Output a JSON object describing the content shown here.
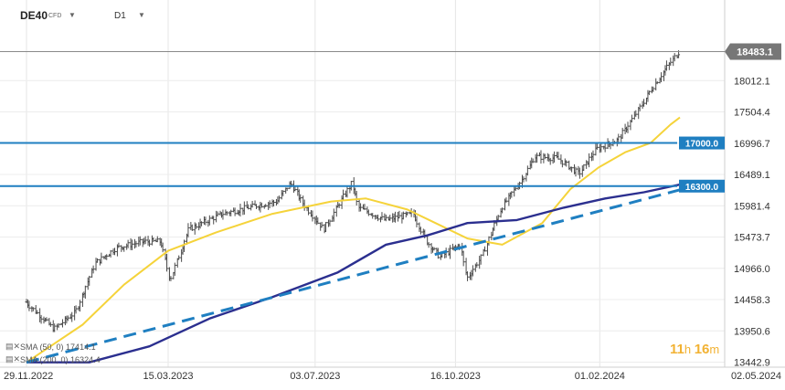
{
  "header": {
    "symbol": "DE40",
    "instrument_type": "CFD",
    "timeframe": "D1",
    "dropdown_icon": "triangle-down-icon"
  },
  "indicators": [
    {
      "label": "SMA (50, 0)",
      "value": "17414.1",
      "color": "#f5d33a"
    },
    {
      "label": "SMA (200, 0)",
      "value": "16324.4",
      "color": "#2b2f8f"
    }
  ],
  "timer": {
    "hours": "11",
    "h_unit": "h",
    "minutes": "16",
    "m_unit": "m"
  },
  "chart_data": {
    "type": "candlestick",
    "title": "",
    "x_ticks": [
      "29.11.2022",
      "15.03.2023",
      "03.07.2023",
      "16.10.2023",
      "01.02.2024",
      "02.05.2024"
    ],
    "y_ticks": [
      18012.1,
      17504.4,
      16996.7,
      16489.1,
      15981.4,
      15473.7,
      14966.0,
      14458.3,
      13950.6,
      13442.9
    ],
    "ylim": [
      13442.9,
      18600
    ],
    "current_price": {
      "value": 18483.1,
      "label": "18483.1"
    },
    "horizontal_levels": [
      {
        "value": 17000.0,
        "label": "17000.0",
        "color": "#1f7fc1"
      },
      {
        "value": 16300.0,
        "label": "16300.0",
        "color": "#1f7fc1"
      }
    ],
    "trendline": {
      "style": "dashed",
      "color": "#1f7fc1",
      "points": [
        [
          "2022-11-29",
          13440
        ],
        [
          "2024-04-01",
          16240
        ]
      ]
    },
    "close_path": [
      [
        "2022-11-29",
        14420
      ],
      [
        "2022-12-20",
        13980
      ],
      [
        "2023-01-05",
        14250
      ],
      [
        "2023-01-20",
        15050
      ],
      [
        "2023-02-05",
        15300
      ],
      [
        "2023-02-25",
        15400
      ],
      [
        "2023-03-10",
        15400
      ],
      [
        "2023-03-17",
        14780
      ],
      [
        "2023-03-31",
        15600
      ],
      [
        "2023-04-25",
        15850
      ],
      [
        "2023-05-20",
        15980
      ],
      [
        "2023-06-05",
        16050
      ],
      [
        "2023-06-15",
        16350
      ],
      [
        "2023-06-25",
        16000
      ],
      [
        "2023-07-10",
        15600
      ],
      [
        "2023-07-31",
        16350
      ],
      [
        "2023-08-05",
        15950
      ],
      [
        "2023-08-25",
        15750
      ],
      [
        "2023-09-15",
        15850
      ],
      [
        "2023-09-25",
        15400
      ],
      [
        "2023-10-05",
        15150
      ],
      [
        "2023-10-20",
        15350
      ],
      [
        "2023-10-25",
        14800
      ],
      [
        "2023-11-05",
        15150
      ],
      [
        "2023-11-20",
        15950
      ],
      [
        "2023-12-05",
        16400
      ],
      [
        "2023-12-15",
        16780
      ],
      [
        "2024-01-01",
        16750
      ],
      [
        "2024-01-17",
        16500
      ],
      [
        "2024-01-30",
        16900
      ],
      [
        "2024-02-15",
        17050
      ],
      [
        "2024-02-28",
        17450
      ],
      [
        "2024-03-12",
        17900
      ],
      [
        "2024-03-20",
        18150
      ],
      [
        "2024-04-01",
        18483
      ]
    ],
    "series": [
      {
        "name": "SMA (50, 0)",
        "color": "#f5d33a",
        "points": [
          [
            "2022-11-29",
            13440
          ],
          [
            "2023-01-10",
            14050
          ],
          [
            "2023-02-10",
            14700
          ],
          [
            "2023-03-15",
            15250
          ],
          [
            "2023-04-20",
            15550
          ],
          [
            "2023-06-01",
            15850
          ],
          [
            "2023-07-15",
            16050
          ],
          [
            "2023-08-10",
            16100
          ],
          [
            "2023-09-10",
            15920
          ],
          [
            "2023-10-01",
            15700
          ],
          [
            "2023-10-25",
            15450
          ],
          [
            "2023-11-20",
            15350
          ],
          [
            "2023-12-20",
            15700
          ],
          [
            "2024-01-10",
            16250
          ],
          [
            "2024-01-31",
            16600
          ],
          [
            "2024-02-20",
            16850
          ],
          [
            "2024-03-10",
            17000
          ],
          [
            "2024-03-25",
            17300
          ],
          [
            "2024-04-01",
            17414
          ]
        ]
      },
      {
        "name": "SMA (200, 0)",
        "color": "#2b2f8f",
        "points": [
          [
            "2022-11-29",
            13440
          ],
          [
            "2023-01-15",
            13440
          ],
          [
            "2023-03-01",
            13700
          ],
          [
            "2023-04-15",
            14150
          ],
          [
            "2023-06-01",
            14500
          ],
          [
            "2023-07-20",
            14900
          ],
          [
            "2023-08-25",
            15350
          ],
          [
            "2023-09-25",
            15500
          ],
          [
            "2023-10-25",
            15700
          ],
          [
            "2023-12-01",
            15750
          ],
          [
            "2024-01-05",
            15950
          ],
          [
            "2024-02-05",
            16100
          ],
          [
            "2024-03-05",
            16200
          ],
          [
            "2024-04-01",
            16324
          ]
        ]
      }
    ]
  }
}
